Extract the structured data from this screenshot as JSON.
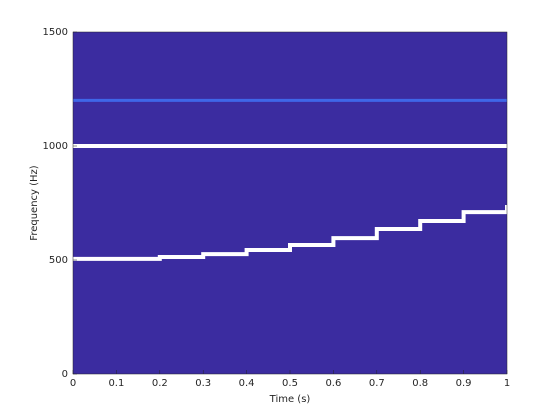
{
  "chart_data": {
    "type": "spectrogram",
    "xlabel": "Time (s)",
    "ylabel": "Frequency (Hz)",
    "xlim": [
      0,
      1
    ],
    "xticks": [
      0,
      0.1,
      0.2,
      0.3,
      0.4,
      0.5,
      0.6,
      0.7,
      0.8,
      0.9,
      1
    ],
    "ylim": [
      0,
      1500
    ],
    "yticks": [
      0,
      500,
      1000,
      1500
    ],
    "background": "#3b2ca0",
    "series": [
      {
        "color": "#3f66e8",
        "x": [
          0,
          1
        ],
        "values": [
          1200,
          1200
        ]
      },
      {
        "color": "#ffffff",
        "x": [
          0,
          1
        ],
        "values": [
          1000,
          1000
        ]
      },
      {
        "color": "#ffffff",
        "x": [
          0,
          0.1,
          0.2,
          0.3,
          0.4,
          0.5,
          0.6,
          0.7,
          0.8,
          0.9,
          1
        ],
        "values": [
          505,
          505,
          513,
          526,
          544,
          566,
          596,
          636,
          671,
          710,
          741
        ]
      }
    ]
  }
}
